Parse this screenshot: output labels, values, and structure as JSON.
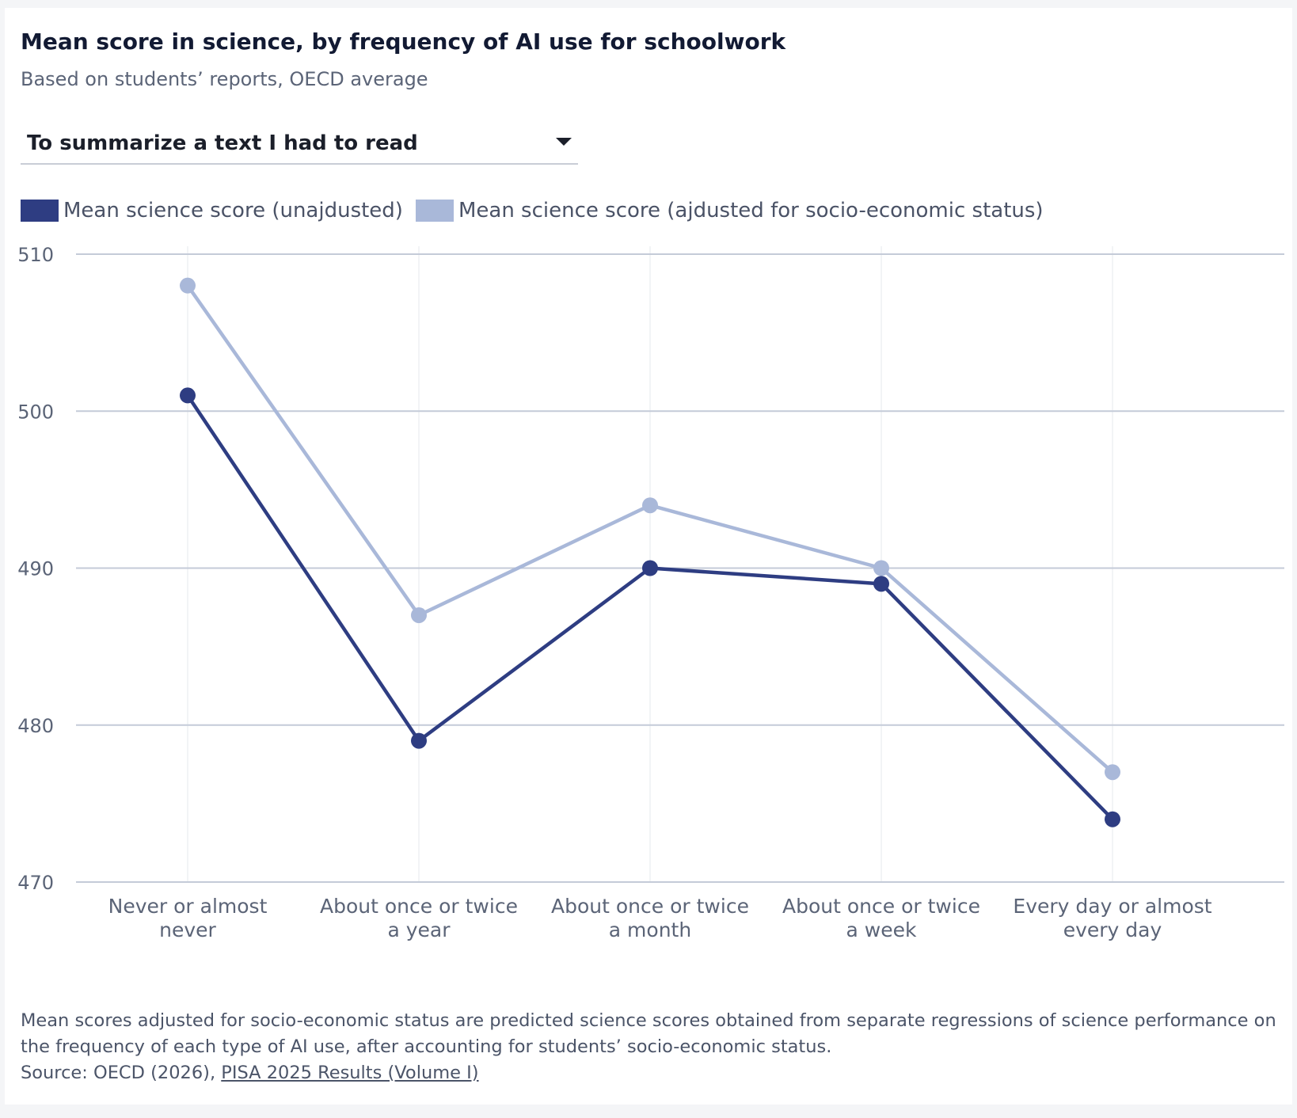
{
  "header": {
    "title": "Mean score in science, by frequency of AI use for schoolwork",
    "subtitle": "Based on students’ reports, OECD average"
  },
  "dropdown": {
    "selected": "To summarize a text I had to read"
  },
  "legend": {
    "items": [
      {
        "label": "Mean science score (unajdusted)",
        "color": "#2e3d82"
      },
      {
        "label": "Mean science score (ajdusted for socio-economic status)",
        "color": "#a9b8d9"
      }
    ]
  },
  "chart_data": {
    "type": "line",
    "categories": [
      [
        "Never or almost",
        "never"
      ],
      [
        "About once or twice",
        "a year"
      ],
      [
        "About once or twice",
        "a month"
      ],
      [
        "About once or twice",
        "a week"
      ],
      [
        "Every day or almost",
        "every day"
      ]
    ],
    "series": [
      {
        "name": "Mean science score (unajdusted)",
        "values": [
          501,
          479,
          490,
          489,
          474
        ],
        "color": "#2e3d82"
      },
      {
        "name": "Mean science score (ajdusted for socio-economic status)",
        "values": [
          508,
          487,
          494,
          490,
          477
        ],
        "color": "#a9b8d9"
      }
    ],
    "ylim": [
      470,
      510
    ],
    "yticks": [
      470,
      480,
      490,
      500,
      510
    ],
    "grid": true,
    "legend_position": "top-left"
  },
  "footer": {
    "note": "Mean scores adjusted for socio-economic status are predicted science scores obtained from separate regressions of science performance on the frequency of each type of AI use, after accounting for students’ socio-economic status.",
    "source_prefix": "Source: OECD (2026), ",
    "source_link": "PISA 2025 Results (Volume I)"
  }
}
